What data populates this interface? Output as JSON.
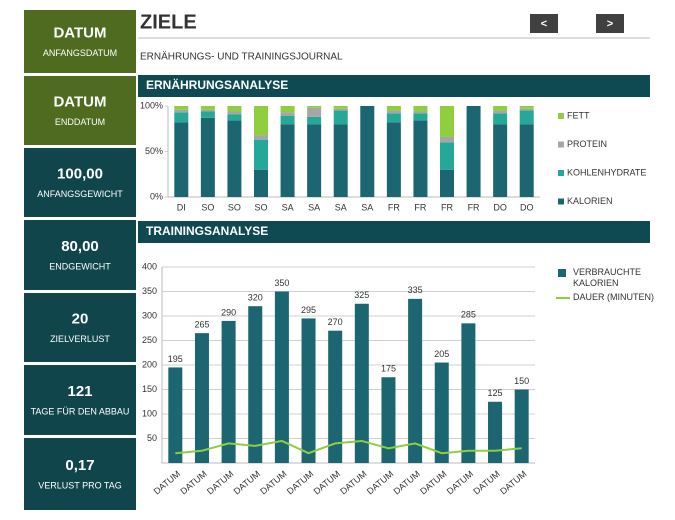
{
  "header": {
    "title": "ZIELE",
    "subtitle": "ERNÄHRUNGS- UND TRAININGSJOURNAL",
    "prev": "<",
    "next": ">"
  },
  "sidebar": [
    {
      "value": "DATUM",
      "label": "ANFANGSDATUM"
    },
    {
      "value": "DATUM",
      "label": "ENDDATUM"
    },
    {
      "value": "100,00",
      "label": "ANFANGSGEWICHT"
    },
    {
      "value": "80,00",
      "label": "ENDGEWICHT"
    },
    {
      "value": "20",
      "label": "ZIELVERLUST"
    },
    {
      "value": "121",
      "label": "TAGE FÜR DEN ABBAU"
    },
    {
      "value": "0,17",
      "label": "VERLUST PRO TAG"
    }
  ],
  "chart_data": [
    {
      "type": "bar",
      "stacked": true,
      "title": "ERNÄHRUNGSANALYSE",
      "categories": [
        "DI",
        "SO",
        "SO",
        "SO",
        "SA",
        "SA",
        "SA",
        "SA",
        "FR",
        "FR",
        "FR",
        "FR",
        "DO",
        "DO"
      ],
      "series": [
        {
          "name": "KALORIEN",
          "color": "#1b6670",
          "values": [
            82,
            87,
            84,
            30,
            80,
            80,
            80,
            100,
            82,
            84,
            30,
            100,
            80,
            80
          ]
        },
        {
          "name": "KOHLENHYDRATE",
          "color": "#26a898",
          "values": [
            11,
            7,
            7,
            33,
            9,
            8,
            15,
            0,
            10,
            8,
            30,
            0,
            12,
            15
          ]
        },
        {
          "name": "PROTEIN",
          "color": "#a6a6a6",
          "values": [
            3,
            2,
            3,
            5,
            4,
            10,
            2,
            0,
            3,
            2,
            6,
            0,
            3,
            2
          ]
        },
        {
          "name": "FETT",
          "color": "#8fce3e",
          "values": [
            4,
            4,
            6,
            32,
            7,
            2,
            3,
            0,
            5,
            6,
            34,
            0,
            5,
            3
          ]
        }
      ],
      "ylim": [
        0,
        100
      ],
      "yticks": [
        {
          "value": 0,
          "label": "0%"
        },
        {
          "value": 50,
          "label": "50%"
        },
        {
          "value": 100,
          "label": "100%"
        }
      ],
      "legend": "right"
    },
    {
      "type": "bar",
      "title": "TRAININGSANALYSE",
      "categories": [
        "DATUM",
        "DATUM",
        "DATUM",
        "DATUM",
        "DATUM",
        "DATUM",
        "DATUM",
        "DATUM",
        "DATUM",
        "DATUM",
        "DATUM",
        "DATUM",
        "DATUM",
        "DATUM"
      ],
      "series": [
        {
          "name": "VERBRAUCHTE KALORIEN",
          "color": "#1b6670",
          "values": [
            195,
            265,
            290,
            320,
            350,
            295,
            270,
            325,
            175,
            335,
            205,
            285,
            125,
            150
          ]
        },
        {
          "name": "DAUER (MINUTEN)",
          "color": "#8fce3e",
          "type": "line",
          "values": [
            20,
            25,
            40,
            35,
            45,
            20,
            40,
            45,
            30,
            40,
            20,
            25,
            25,
            30
          ]
        }
      ],
      "ylim": [
        0,
        400
      ],
      "yticks": [
        50,
        100,
        150,
        200,
        250,
        300,
        350,
        400
      ],
      "grid": true,
      "data_labels": true,
      "legend": "right"
    }
  ]
}
